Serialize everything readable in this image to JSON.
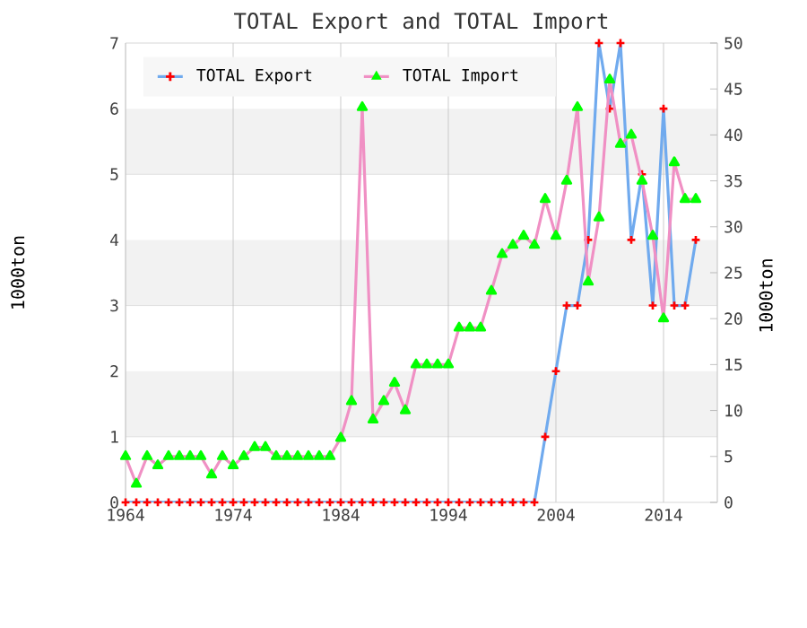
{
  "chart_data": {
    "type": "line",
    "title": "TOTAL Export and TOTAL Import",
    "ylabel": "1000ton",
    "y2label": "1000ton",
    "x": [
      1964,
      1965,
      1966,
      1967,
      1968,
      1969,
      1970,
      1971,
      1972,
      1973,
      1974,
      1975,
      1976,
      1977,
      1978,
      1979,
      1980,
      1981,
      1982,
      1983,
      1984,
      1985,
      1986,
      1987,
      1988,
      1989,
      1990,
      1991,
      1992,
      1993,
      1994,
      1995,
      1996,
      1997,
      1998,
      1999,
      2000,
      2001,
      2002,
      2003,
      2004,
      2005,
      2006,
      2007,
      2008,
      2009,
      2010,
      2011,
      2012,
      2013,
      2014,
      2015,
      2016,
      2017
    ],
    "series": [
      {
        "name": "TOTAL Export",
        "color": "#70aaee",
        "marker": "cross",
        "values": [
          0,
          0,
          0,
          0,
          0,
          0,
          0,
          0,
          0,
          0,
          0,
          0,
          0,
          0,
          0,
          0,
          0,
          0,
          0,
          0,
          0,
          0,
          0,
          0,
          0,
          0,
          0,
          0,
          0,
          0,
          0,
          0,
          0,
          0,
          0,
          0,
          0,
          0,
          0,
          1,
          2,
          3,
          3,
          4,
          7,
          6,
          7,
          4,
          5,
          3,
          6,
          3,
          3,
          4
        ]
      },
      {
        "name": "TOTAL Import",
        "color": "#f090c4",
        "marker": "triangle",
        "axis": "y2",
        "values": [
          5,
          2,
          5,
          4,
          5,
          5,
          5,
          5,
          3,
          5,
          4,
          5,
          6,
          6,
          5,
          5,
          5,
          5,
          5,
          5,
          7,
          11,
          43,
          9,
          11,
          13,
          10,
          15,
          15,
          15,
          15,
          19,
          19,
          19,
          23,
          27,
          28,
          29,
          28,
          33,
          29,
          35,
          43,
          24,
          31,
          46,
          39,
          40,
          35,
          29,
          20,
          37,
          33,
          33
        ]
      }
    ],
    "xlim": [
      1964,
      2019
    ],
    "xticks": [
      1964,
      1974,
      1984,
      1994,
      2004,
      2014
    ],
    "ylim": [
      0,
      7
    ],
    "yticks": [
      0,
      1,
      2,
      3,
      4,
      5,
      6,
      7
    ],
    "y2lim": [
      0,
      50
    ],
    "y2ticks": [
      0,
      5,
      10,
      15,
      20,
      25,
      30,
      35,
      40,
      45,
      50
    ],
    "grid": true,
    "legend": "top left"
  }
}
